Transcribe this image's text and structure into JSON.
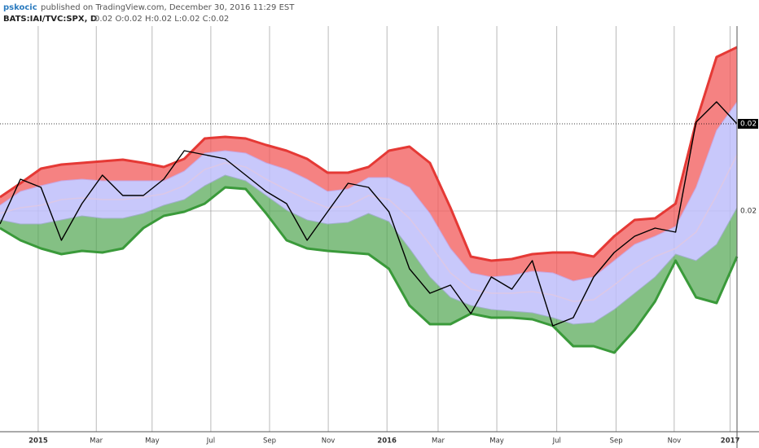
{
  "header": {
    "user": "pskocic",
    "published": "published on TradingView.com, December 30, 2016 11:29 EST",
    "symbol": "BATS:IAI/TVC:SPX, D",
    "quote": "0.02 O:0.02 H:0.02 L:0.02 C:0.02"
  },
  "chart_data": {
    "type": "line",
    "x": [
      0,
      3,
      6,
      9,
      12,
      15,
      18,
      21,
      24,
      27,
      30,
      33,
      36,
      39,
      42,
      45,
      48,
      51,
      54,
      57,
      60,
      63,
      66,
      69,
      72,
      75,
      78,
      81,
      84,
      87,
      90,
      93,
      96,
      99,
      102,
      105,
      108
    ],
    "series": [
      {
        "color": "#e53935",
        "values": [
          0.02017,
          0.02034,
          0.02052,
          0.02057,
          0.02059,
          0.02061,
          0.02063,
          0.02059,
          0.02054,
          0.02064,
          0.02089,
          0.02091,
          0.02089,
          0.02081,
          0.02074,
          0.02064,
          0.02047,
          0.02047,
          0.02054,
          0.02074,
          0.02079,
          0.02059,
          0.02004,
          0.01944,
          0.01939,
          0.01941,
          0.01947,
          0.01949,
          0.01949,
          0.01944,
          0.01969,
          0.01989,
          0.01991,
          0.02009,
          0.02109,
          0.02189,
          0.02201
        ]
      },
      {
        "color": "#c9a6e0",
        "values": [
          0.02007,
          0.02024,
          0.02031,
          0.02037,
          0.02039,
          0.02037,
          0.02037,
          0.02037,
          0.02037,
          0.02049,
          0.02071,
          0.02074,
          0.02071,
          0.02059,
          0.02051,
          0.02039,
          0.02024,
          0.02027,
          0.02041,
          0.02041,
          0.02029,
          0.01997,
          0.01954,
          0.01924,
          0.01919,
          0.01921,
          0.01926,
          0.01924,
          0.01914,
          0.01919,
          0.01939,
          0.01959,
          0.01969,
          0.01981,
          0.02029,
          0.02099,
          0.02134
        ]
      },
      {
        "color": "#dcc8e6",
        "values": [
          0.01997,
          0.02004,
          0.02007,
          0.02014,
          0.02016,
          0.02014,
          0.02014,
          0.02017,
          0.02021,
          0.02031,
          0.02051,
          0.02059,
          0.02054,
          0.02039,
          0.02026,
          0.02014,
          0.02004,
          0.02006,
          0.02019,
          0.02014,
          0.01991,
          0.01959,
          0.01924,
          0.01904,
          0.01899,
          0.01899,
          0.01901,
          0.01897,
          0.01889,
          0.01891,
          0.01909,
          0.01929,
          0.01944,
          0.01954,
          0.01974,
          0.02019,
          0.02069
        ]
      },
      {
        "color": "#9fb0c8",
        "values": [
          0.01989,
          0.01984,
          0.01984,
          0.01989,
          0.01994,
          0.01991,
          0.01991,
          0.01997,
          0.02007,
          0.02014,
          0.02031,
          0.02044,
          0.02037,
          0.02019,
          0.02001,
          0.01989,
          0.01984,
          0.01986,
          0.01997,
          0.01987,
          0.01954,
          0.01919,
          0.01894,
          0.01884,
          0.01879,
          0.01877,
          0.01875,
          0.01869,
          0.01861,
          0.01863,
          0.01879,
          0.01899,
          0.01919,
          0.01947,
          0.01939,
          0.01959,
          0.02004
        ]
      },
      {
        "color": "#3a9a3a",
        "values": [
          0.01979,
          0.01964,
          0.01954,
          0.01947,
          0.01951,
          0.01949,
          0.01954,
          0.01979,
          0.01994,
          0.01999,
          0.02009,
          0.02029,
          0.02027,
          0.01997,
          0.01964,
          0.01954,
          0.01951,
          0.01949,
          0.01947,
          0.01929,
          0.01884,
          0.01861,
          0.01861,
          0.01874,
          0.01869,
          0.01869,
          0.01867,
          0.01859,
          0.01834,
          0.01834,
          0.01826,
          0.01854,
          0.01889,
          0.01939,
          0.01894,
          0.01887,
          0.01944
        ]
      },
      {
        "color": "#000000",
        "values": [
          0.01984,
          0.02039,
          0.02029,
          0.01964,
          0.02009,
          0.02044,
          0.02019,
          0.02019,
          0.02039,
          0.02074,
          0.02069,
          0.02064,
          0.02044,
          0.02024,
          0.02009,
          0.01964,
          0.01999,
          0.02034,
          0.02029,
          0.01999,
          0.01929,
          0.01899,
          0.01909,
          0.01874,
          0.01919,
          0.01904,
          0.01939,
          0.01859,
          0.01869,
          0.01919,
          0.01949,
          0.01969,
          0.01979,
          0.01974,
          0.02109,
          0.02134,
          0.02107
        ]
      }
    ],
    "xlim": [
      0,
      108
    ],
    "xticks": [
      {
        "value": 5.6,
        "label": "2015"
      },
      {
        "value": 14.1,
        "label": "Mar"
      },
      {
        "value": 22.3,
        "label": "May"
      },
      {
        "value": 30.9,
        "label": "Jul"
      },
      {
        "value": 39.5,
        "label": "Sep"
      },
      {
        "value": 48.1,
        "label": "Nov"
      },
      {
        "value": 56.7,
        "label": "2016"
      },
      {
        "value": 64.2,
        "label": "Mar"
      },
      {
        "value": 72.8,
        "label": "May"
      },
      {
        "value": 81.6,
        "label": "Jul"
      },
      {
        "value": 90.3,
        "label": "Sep"
      },
      {
        "value": 98.8,
        "label": "Nov"
      },
      {
        "value": 107.0,
        "label": "2017"
      }
    ],
    "ylim": [
      0.01729,
      0.02227
    ],
    "yticks": [
      0.02
    ],
    "last_value": {
      "value": 0.02107,
      "label": "0.02"
    },
    "grid": true
  }
}
